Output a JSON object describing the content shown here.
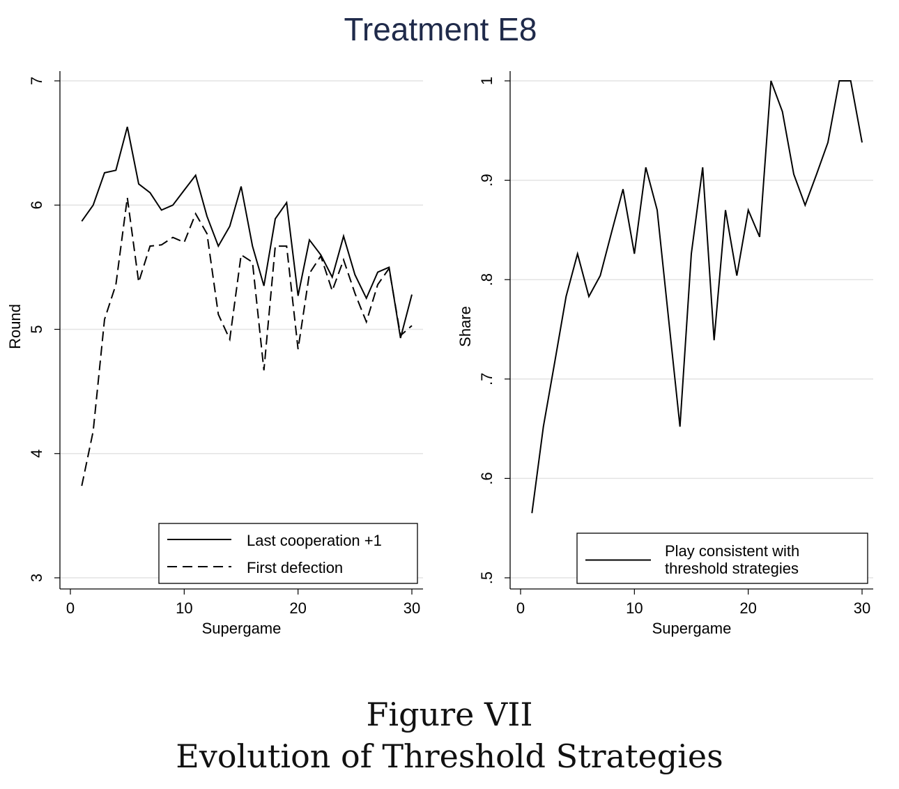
{
  "figure": {
    "suptitle": "Treatment E8",
    "caption_line1": "Figure VII",
    "caption_line2": "Evolution of Threshold Strategies"
  },
  "colors": {
    "title": "#1f2a4a",
    "line": "#000000",
    "grid": "#e3e3e3"
  },
  "chart_data": [
    {
      "type": "line",
      "xlabel": "Supergame",
      "ylabel": "Round",
      "xlim": [
        0,
        30
      ],
      "ylim": [
        3,
        7
      ],
      "xticks": [
        "0",
        "10",
        "20",
        "30"
      ],
      "yticks": [
        "3",
        "4",
        "5",
        "6",
        "7"
      ],
      "grid": true,
      "legend_position": "bottom-right",
      "x": [
        1,
        2,
        3,
        4,
        5,
        6,
        7,
        8,
        9,
        10,
        11,
        12,
        13,
        14,
        15,
        16,
        17,
        18,
        19,
        20,
        21,
        22,
        23,
        24,
        25,
        26,
        27,
        28,
        29,
        30
      ],
      "series": [
        {
          "name": "Last cooperation +1",
          "style": "solid",
          "values": [
            5.87,
            6.0,
            6.26,
            6.28,
            6.63,
            6.17,
            6.1,
            5.96,
            6.0,
            6.12,
            6.24,
            5.91,
            5.67,
            5.83,
            6.15,
            5.67,
            5.35,
            5.89,
            6.02,
            5.27,
            5.72,
            5.6,
            5.42,
            5.75,
            5.44,
            5.25,
            5.46,
            5.5,
            4.93,
            5.28
          ]
        },
        {
          "name": "First defection",
          "style": "dashed",
          "values": [
            3.74,
            4.18,
            5.08,
            5.36,
            6.06,
            5.38,
            5.67,
            5.68,
            5.74,
            5.7,
            5.93,
            5.77,
            5.12,
            4.92,
            5.6,
            5.54,
            4.67,
            5.67,
            5.67,
            4.84,
            5.45,
            5.59,
            5.31,
            5.56,
            5.29,
            5.06,
            5.36,
            5.49,
            4.95,
            5.03
          ]
        }
      ]
    },
    {
      "type": "line",
      "xlabel": "Supergame",
      "ylabel": "Share",
      "xlim": [
        0,
        30
      ],
      "ylim": [
        0.5,
        1
      ],
      "xticks": [
        "0",
        "10",
        "20",
        "30"
      ],
      "yticks": [
        ".5",
        ".6",
        ".7",
        ".8",
        ".9",
        "1"
      ],
      "grid": true,
      "legend_position": "bottom-right",
      "x": [
        1,
        2,
        3,
        4,
        5,
        6,
        7,
        8,
        9,
        10,
        11,
        12,
        13,
        14,
        15,
        16,
        17,
        18,
        19,
        20,
        21,
        22,
        23,
        24,
        25,
        26,
        27,
        28,
        29,
        30
      ],
      "series": [
        {
          "name": "Play consistent with threshold strategies",
          "legend_lines": [
            "Play consistent with",
            "threshold strategies"
          ],
          "style": "solid",
          "values": [
            0.565,
            0.652,
            0.717,
            0.783,
            0.826,
            0.783,
            0.804,
            0.848,
            0.891,
            0.826,
            0.913,
            0.87,
            0.761,
            0.652,
            0.826,
            0.913,
            0.739,
            0.87,
            0.804,
            0.87,
            0.843,
            1.0,
            0.969,
            0.906,
            0.875,
            0.906,
            0.938,
            1.0,
            1.0,
            0.938
          ]
        }
      ]
    }
  ]
}
